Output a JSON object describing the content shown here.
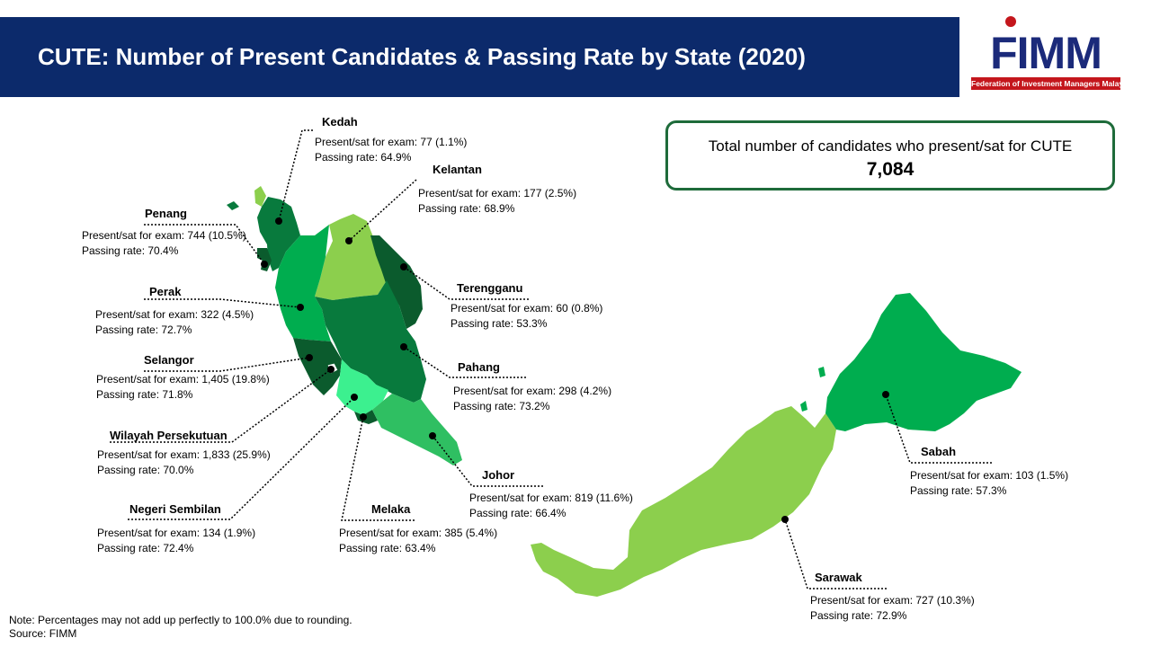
{
  "title": "CUTE: Number of Present Candidates & Passing Rate by State (2020)",
  "logo": {
    "text": "FIMM",
    "tagline": "Federation of Investment Managers Malaysia"
  },
  "total": {
    "label": "Total number of candidates who present/sat for CUTE",
    "value": "7,084"
  },
  "colors": {
    "header": "#0c2a6b",
    "box_border": "#1e6b3a",
    "dark": "#0b5b2d",
    "mid_dark": "#087a3d",
    "mid": "#00ad4f",
    "light_mid": "#2fbf62",
    "light": "#8ccf4d",
    "mint": "#3cf08f"
  },
  "states": [
    {
      "name": "Kedah",
      "present": "Present/sat for exam: 77 (1.1%)",
      "passing": "Passing rate: 64.9%"
    },
    {
      "name": "Kelantan",
      "present": "Present/sat for exam: 177 (2.5%)",
      "passing": "Passing rate: 68.9%"
    },
    {
      "name": "Penang",
      "present": "Present/sat for exam: 744 (10.5%)",
      "passing": "Passing rate: 70.4%"
    },
    {
      "name": "Perak",
      "present": "Present/sat for exam: 322 (4.5%)",
      "passing": "Passing rate: 72.7%"
    },
    {
      "name": "Terengganu",
      "present": "Present/sat for exam: 60 (0.8%)",
      "passing": "Passing rate: 53.3%"
    },
    {
      "name": "Selangor",
      "present": "Present/sat for exam: 1,405 (19.8%)",
      "passing": "Passing rate: 71.8%"
    },
    {
      "name": "Pahang",
      "present": "Present/sat for exam: 298 (4.2%)",
      "passing": "Passing rate: 73.2%"
    },
    {
      "name": "Wilayah Persekutuan",
      "present": "Present/sat for exam: 1,833 (25.9%)",
      "passing": "Passing rate: 70.0%"
    },
    {
      "name": "Sabah",
      "present": "Present/sat for exam: 103 (1.5%)",
      "passing": "Passing rate: 57.3%"
    },
    {
      "name": "Johor",
      "present": "Present/sat for exam: 819 (11.6%)",
      "passing": "Passing rate: 66.4%"
    },
    {
      "name": "Negeri Sembilan",
      "present": "Present/sat for exam: 134 (1.9%)",
      "passing": "Passing rate: 72.4%"
    },
    {
      "name": "Melaka",
      "present": "Present/sat for exam: 385 (5.4%)",
      "passing": "Passing rate: 63.4%"
    },
    {
      "name": "Sarawak",
      "present": "Present/sat for exam: 727 (10.3%)",
      "passing": "Passing rate: 72.9%"
    }
  ],
  "note": {
    "line1": "Note: Percentages may not add up perfectly to 100.0% due to rounding.",
    "line2": "Source: FIMM"
  }
}
